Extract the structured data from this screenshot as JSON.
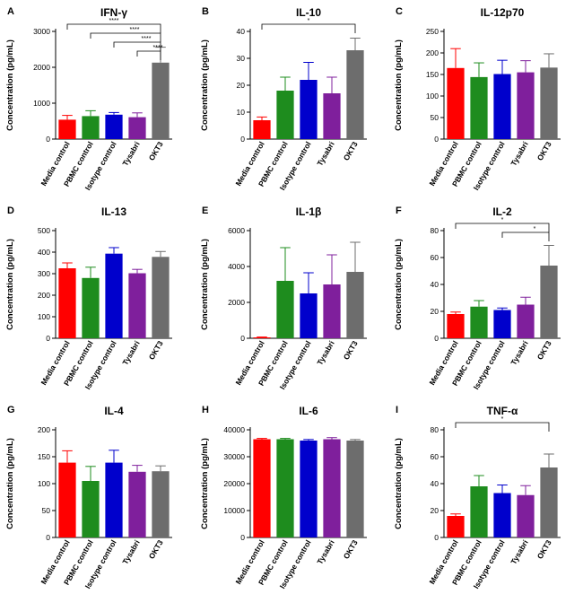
{
  "figure": {
    "xcategories": [
      "Media control",
      "PBMC control",
      "Isotype control",
      "Tysabri",
      "OKT3"
    ],
    "colors": [
      "#ff0000",
      "#1e8c1e",
      "#0000cc",
      "#7f1f9c",
      "#6d6d6d"
    ],
    "ylabel": "Concentration (pg/mL)"
  },
  "chart_data": [
    {
      "type": "bar",
      "letter": "A",
      "title": "IFN-γ",
      "categories": [
        "Media control",
        "PBMC control",
        "Isotype control",
        "Tysabri",
        "OKT3"
      ],
      "values": [
        540,
        640,
        680,
        610,
        2130
      ],
      "errors": [
        120,
        150,
        60,
        120,
        430
      ],
      "ylabel": "Concentration (pg/mL)",
      "ylim": [
        0,
        3000
      ],
      "yticks": [
        0,
        1000,
        2000,
        3000
      ],
      "significance": [
        {
          "from": 0,
          "to": 4,
          "label": "****"
        },
        {
          "from": 1,
          "to": 4,
          "label": "****"
        },
        {
          "from": 2,
          "to": 4,
          "label": "****"
        },
        {
          "from": 3,
          "to": 4,
          "label": "****"
        }
      ]
    },
    {
      "type": "bar",
      "letter": "B",
      "title": "IL-10",
      "categories": [
        "Media control",
        "PBMC control",
        "Isotype control",
        "Tysabri",
        "OKT3"
      ],
      "values": [
        7,
        18,
        22,
        17,
        33
      ],
      "errors": [
        1.2,
        5,
        6.5,
        6,
        4.5
      ],
      "ylabel": "Concentration (pg/mL)",
      "ylim": [
        0,
        40
      ],
      "yticks": [
        0,
        10,
        20,
        30,
        40
      ],
      "significance": [
        {
          "from": 0,
          "to": 4,
          "label": "*"
        }
      ]
    },
    {
      "type": "bar",
      "letter": "C",
      "title": "IL-12p70",
      "categories": [
        "Media control",
        "PBMC control",
        "Isotype control",
        "Tysabri",
        "OKT3"
      ],
      "values": [
        165,
        144,
        151,
        155,
        166
      ],
      "errors": [
        45,
        33,
        32,
        27,
        32
      ],
      "ylabel": "Concentration (pg/mL)",
      "ylim": [
        0,
        250
      ],
      "yticks": [
        0,
        50,
        100,
        150,
        200,
        250
      ],
      "significance": []
    },
    {
      "type": "bar",
      "letter": "D",
      "title": "IL-13",
      "categories": [
        "Media control",
        "PBMC control",
        "Isotype control",
        "Tysabri",
        "OKT3"
      ],
      "values": [
        325,
        280,
        393,
        302,
        378
      ],
      "errors": [
        25,
        50,
        28,
        18,
        25
      ],
      "ylabel": "Concentration (pg/mL)",
      "ylim": [
        0,
        500
      ],
      "yticks": [
        0,
        100,
        200,
        300,
        400,
        500
      ],
      "significance": []
    },
    {
      "type": "bar",
      "letter": "E",
      "title": "IL-1β",
      "categories": [
        "Media control",
        "PBMC control",
        "Isotype control",
        "Tysabri",
        "OKT3"
      ],
      "values": [
        50,
        3200,
        2500,
        3000,
        3700
      ],
      "errors": [
        20,
        1850,
        1150,
        1650,
        1650
      ],
      "ylabel": "Concentration (pg/mL)",
      "ylim": [
        0,
        6000
      ],
      "yticks": [
        0,
        2000,
        4000,
        6000
      ],
      "significance": []
    },
    {
      "type": "bar",
      "letter": "F",
      "title": "IL-2",
      "categories": [
        "Media control",
        "PBMC control",
        "Isotype control",
        "Tysabri",
        "OKT3"
      ],
      "values": [
        18,
        23.5,
        21,
        25,
        54
      ],
      "errors": [
        1.5,
        4.5,
        1.5,
        5.5,
        15
      ],
      "ylabel": "Concentration (pg/mL)",
      "ylim": [
        0,
        80
      ],
      "yticks": [
        0,
        20,
        40,
        60,
        80
      ],
      "significance": [
        {
          "from": 0,
          "to": 4,
          "label": "*"
        },
        {
          "from": 2,
          "to": 4,
          "label": "*"
        }
      ]
    },
    {
      "type": "bar",
      "letter": "G",
      "title": "IL-4",
      "categories": [
        "Media control",
        "PBMC control",
        "Isotype control",
        "Tysabri",
        "OKT3"
      ],
      "values": [
        139,
        105,
        139,
        122,
        123
      ],
      "errors": [
        22,
        27,
        23,
        12,
        10
      ],
      "ylabel": "Concentration (pg/mL)",
      "ylim": [
        0,
        200
      ],
      "yticks": [
        0,
        50,
        100,
        150,
        200
      ],
      "significance": []
    },
    {
      "type": "bar",
      "letter": "H",
      "title": "IL-6",
      "categories": [
        "Media control",
        "PBMC control",
        "Isotype control",
        "Tysabri",
        "OKT3"
      ],
      "values": [
        36500,
        36500,
        36000,
        36500,
        36000
      ],
      "errors": [
        300,
        300,
        400,
        600,
        400
      ],
      "ylabel": "Concentration (pg/mL)",
      "ylim": [
        0,
        40000
      ],
      "yticks": [
        0,
        10000,
        20000,
        30000,
        40000
      ],
      "significance": []
    },
    {
      "type": "bar",
      "letter": "I",
      "title": "TNF-α",
      "categories": [
        "Media control",
        "PBMC control",
        "Isotype control",
        "Tysabri",
        "OKT3"
      ],
      "values": [
        16,
        38,
        33,
        31.5,
        52
      ],
      "errors": [
        1.5,
        8,
        6,
        7,
        10
      ],
      "ylabel": "Concentration (pg/mL)",
      "ylim": [
        0,
        80
      ],
      "yticks": [
        0,
        20,
        40,
        60,
        80
      ],
      "significance": [
        {
          "from": 0,
          "to": 4,
          "label": "*"
        }
      ]
    }
  ]
}
